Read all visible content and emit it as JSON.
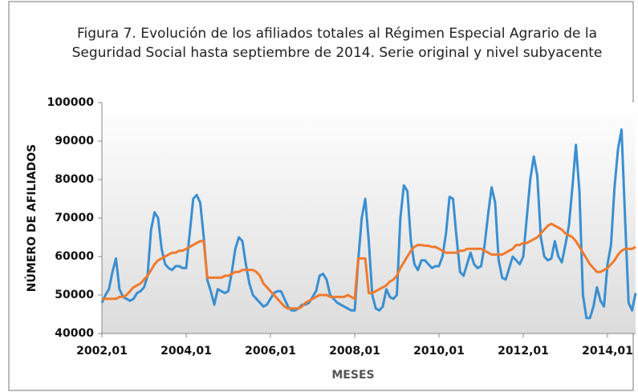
{
  "chart_data": {
    "type": "line",
    "title": "Figura 7. Evolución de los afiliados totales al Régimen Especial Agrario de la Seguridad Social hasta septiembre de 2014. Serie original y nivel subyacente",
    "xlabel": "MESES",
    "ylabel": "NÚMERO DE AFILIADOS",
    "categories": [
      "2002,01",
      null,
      null,
      null,
      null,
      null,
      null,
      null,
      null,
      null,
      null,
      null,
      null,
      null,
      null,
      null,
      null,
      null,
      null,
      null,
      null,
      null,
      null,
      null,
      "2004,01",
      null,
      null,
      null,
      null,
      null,
      null,
      null,
      null,
      null,
      null,
      null,
      null,
      null,
      null,
      null,
      null,
      null,
      null,
      null,
      null,
      null,
      null,
      null,
      "2006,01",
      null,
      null,
      null,
      null,
      null,
      null,
      null,
      null,
      null,
      null,
      null,
      null,
      null,
      null,
      null,
      null,
      null,
      null,
      null,
      null,
      null,
      null,
      null,
      "2008,01",
      null,
      null,
      null,
      null,
      null,
      null,
      null,
      null,
      null,
      null,
      null,
      null,
      null,
      null,
      null,
      null,
      null,
      null,
      null,
      null,
      null,
      null,
      null,
      "2010,01",
      null,
      null,
      null,
      null,
      null,
      null,
      null,
      null,
      null,
      null,
      null,
      null,
      null,
      null,
      null,
      null,
      null,
      null,
      null,
      null,
      null,
      null,
      null,
      "2012,01",
      null,
      null,
      null,
      null,
      null,
      null,
      null,
      null,
      null,
      null,
      null,
      null,
      null,
      null,
      null,
      null,
      null,
      null,
      null,
      null,
      null,
      null,
      null,
      "2014,01",
      null,
      null,
      null,
      null,
      null,
      null,
      null,
      null
    ],
    "series": [
      {
        "color": "#3a8fd1",
        "values": [
          48000,
          50000,
          51500,
          56000,
          59500,
          51500,
          49500,
          49000,
          48500,
          49000,
          50500,
          51000,
          52000,
          55000,
          67000,
          71500,
          70000,
          62000,
          58000,
          57000,
          56500,
          57500,
          57500,
          57000,
          57000,
          66000,
          75000,
          76000,
          74000,
          65000,
          54000,
          51000,
          47500,
          51500,
          51000,
          50500,
          51000,
          56000,
          62000,
          65000,
          64000,
          58000,
          53000,
          50000,
          49000,
          48000,
          47000,
          47500,
          49000,
          50500,
          51000,
          51000,
          49000,
          47000,
          46000,
          46000,
          46500,
          47500,
          47500,
          48000,
          49500,
          51000,
          55000,
          55500,
          54000,
          50000,
          49000,
          48000,
          47500,
          47000,
          46500,
          46000,
          46000,
          59000,
          70000,
          75000,
          64000,
          50000,
          46500,
          46000,
          47000,
          51500,
          49500,
          49000,
          50000,
          70000,
          78500,
          77000,
          64000,
          58000,
          56500,
          59000,
          59000,
          58000,
          57000,
          57500,
          57500,
          60000,
          66000,
          75500,
          75000,
          65000,
          56000,
          55000,
          58000,
          61000,
          58000,
          57000,
          57500,
          63000,
          71000,
          78000,
          74000,
          59000,
          54500,
          54000,
          57000,
          60000,
          59000,
          58000,
          60000,
          70000,
          80000,
          86000,
          81000,
          65000,
          60000,
          59000,
          59500,
          64000,
          60000,
          58500,
          63000,
          68000,
          78000,
          89000,
          77000,
          50000,
          44000,
          44000,
          47000,
          52000,
          48500,
          47000,
          58000,
          63000,
          78000,
          88000,
          93000,
          70000,
          48000,
          46000,
          50500
        ]
      },
      {
        "color": "#f07a2e",
        "values": [
          49000,
          49000,
          49000,
          49000,
          49000,
          49500,
          49500,
          50000,
          51000,
          52000,
          52500,
          53000,
          54000,
          55000,
          56500,
          58000,
          59000,
          59500,
          60000,
          60500,
          61000,
          61000,
          61500,
          61500,
          62000,
          62500,
          63000,
          63500,
          64000,
          64000,
          54500,
          54500,
          54500,
          54500,
          54500,
          55000,
          55000,
          55500,
          56000,
          56000,
          56500,
          56500,
          56500,
          56500,
          56000,
          55000,
          53000,
          52000,
          51000,
          50000,
          49000,
          48000,
          47000,
          46500,
          46500,
          46500,
          46500,
          47000,
          48000,
          48500,
          49000,
          49500,
          50000,
          50000,
          50000,
          49500,
          49500,
          49500,
          49500,
          49500,
          50000,
          49500,
          49000,
          59500,
          59500,
          59500,
          50500,
          50500,
          51000,
          51500,
          52000,
          52500,
          53500,
          54000,
          55000,
          57000,
          58500,
          60000,
          61500,
          62500,
          63000,
          63000,
          62800,
          62800,
          62500,
          62500,
          62000,
          61500,
          61000,
          61000,
          61000,
          61000,
          61500,
          61500,
          62000,
          62000,
          62000,
          62000,
          62000,
          61500,
          61000,
          60500,
          60500,
          60500,
          60500,
          61000,
          61500,
          62000,
          63000,
          63000,
          63500,
          63500,
          64000,
          64500,
          65000,
          66000,
          67000,
          68000,
          68500,
          68000,
          67500,
          67000,
          66000,
          65500,
          65000,
          64000,
          62500,
          61000,
          59500,
          58000,
          57000,
          56000,
          56000,
          56500,
          57000,
          58000,
          59000,
          60500,
          61500,
          62000,
          62000,
          62000,
          62500
        ]
      }
    ],
    "ylim": [
      40000,
      100000
    ],
    "yticks": [
      40000,
      50000,
      60000,
      70000,
      80000,
      90000,
      100000
    ],
    "grid": false
  }
}
